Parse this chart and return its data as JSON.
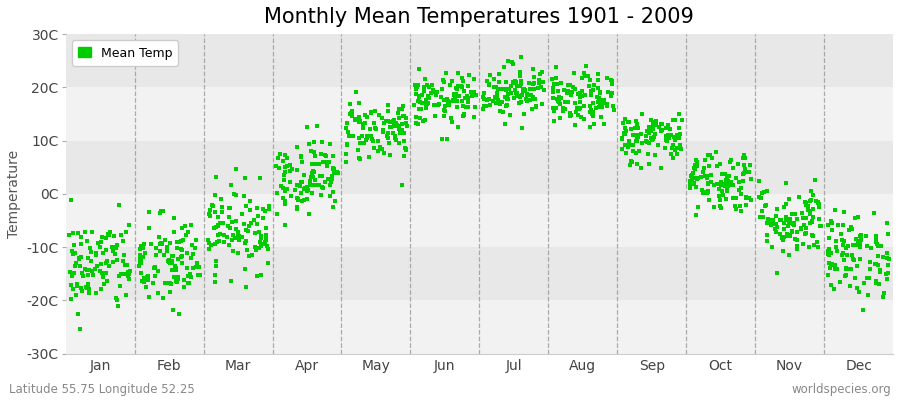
{
  "title": "Monthly Mean Temperatures 1901 - 2009",
  "ylabel": "Temperature",
  "ylim": [
    -30,
    30
  ],
  "yticks": [
    -30,
    -20,
    -10,
    0,
    10,
    20,
    30
  ],
  "ytick_labels": [
    "-30C",
    "-20C",
    "-10C",
    "0C",
    "10C",
    "20C",
    "30C"
  ],
  "months": [
    "Jan",
    "Feb",
    "Mar",
    "Apr",
    "May",
    "Jun",
    "Jul",
    "Aug",
    "Sep",
    "Oct",
    "Nov",
    "Dec"
  ],
  "n_years": 109,
  "seed": 42,
  "mean_temps": [
    -13.5,
    -13.0,
    -6.5,
    3.5,
    12.0,
    17.5,
    19.5,
    17.5,
    10.5,
    2.5,
    -5.0,
    -11.5
  ],
  "std_temps": [
    4.5,
    4.5,
    4.0,
    3.5,
    3.0,
    2.5,
    2.5,
    2.5,
    2.5,
    3.0,
    3.5,
    4.0
  ],
  "dot_color": "#00cc00",
  "dot_size": 5,
  "background_bands": [
    "#f8f8f8",
    "#ebebeb",
    "#f8f8f8",
    "#ebebeb",
    "#f8f8f8",
    "#ebebeb"
  ],
  "legend_label": "Mean Temp",
  "footer_left": "Latitude 55.75 Longitude 52.25",
  "footer_right": "worldspecies.org",
  "title_fontsize": 15,
  "axis_fontsize": 10,
  "footer_fontsize": 8.5,
  "legend_fontsize": 9,
  "dashed_color": "#999999",
  "spine_color": "#cccccc"
}
